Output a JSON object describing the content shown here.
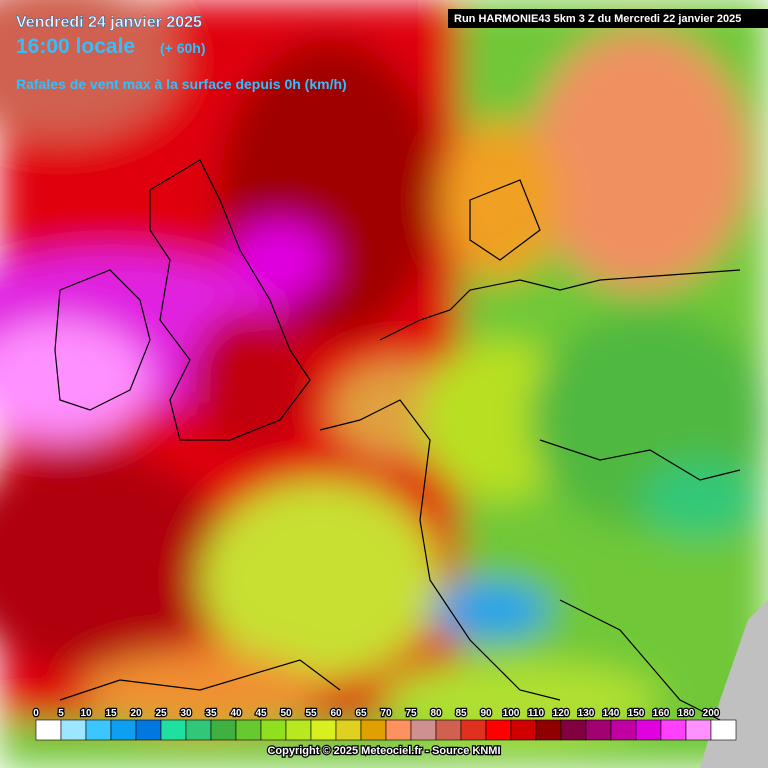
{
  "header": {
    "date": "Vendredi 24 janvier 2025",
    "time": "16:00 locale",
    "offset": "(+ 60h)",
    "subtitle": "Rafales de vent max à la surface depuis 0h (km/h)",
    "run": "Run HARMONIE43 5km 3 Z du Mercredi 22 janvier 2025"
  },
  "legend": {
    "items": [
      {
        "label": 0,
        "color": "#ffffff"
      },
      {
        "label": 5,
        "color": "#9ee6ff"
      },
      {
        "label": 10,
        "color": "#3cc6ff"
      },
      {
        "label": 15,
        "color": "#0ea0f0"
      },
      {
        "label": 20,
        "color": "#0078e0"
      },
      {
        "label": 25,
        "color": "#20e0a0"
      },
      {
        "label": 30,
        "color": "#30c878"
      },
      {
        "label": 35,
        "color": "#40b040"
      },
      {
        "label": 40,
        "color": "#68c830"
      },
      {
        "label": 45,
        "color": "#90e020"
      },
      {
        "label": 50,
        "color": "#b8e820"
      },
      {
        "label": 55,
        "color": "#d8f020"
      },
      {
        "label": 60,
        "color": "#e0d020"
      },
      {
        "label": 65,
        "color": "#e0a000"
      },
      {
        "label": 70,
        "color": "#ff9060"
      },
      {
        "label": 75,
        "color": "#d09090"
      },
      {
        "label": 80,
        "color": "#d06050"
      },
      {
        "label": 85,
        "color": "#e03020"
      },
      {
        "label": 90,
        "color": "#ff0000"
      },
      {
        "label": 100,
        "color": "#d00000"
      },
      {
        "label": 110,
        "color": "#900000"
      },
      {
        "label": 120,
        "color": "#800040"
      },
      {
        "label": 130,
        "color": "#a00070"
      },
      {
        "label": 140,
        "color": "#c000a0"
      },
      {
        "label": 150,
        "color": "#e000e0"
      },
      {
        "label": 160,
        "color": "#ff40ff"
      },
      {
        "label": 180,
        "color": "#ff90ff"
      },
      {
        "label": 200,
        "color": "#ffffff"
      }
    ]
  },
  "footer": {
    "copyright": "Copyright © 2025 Meteociel.fr - Source KNMI"
  }
}
